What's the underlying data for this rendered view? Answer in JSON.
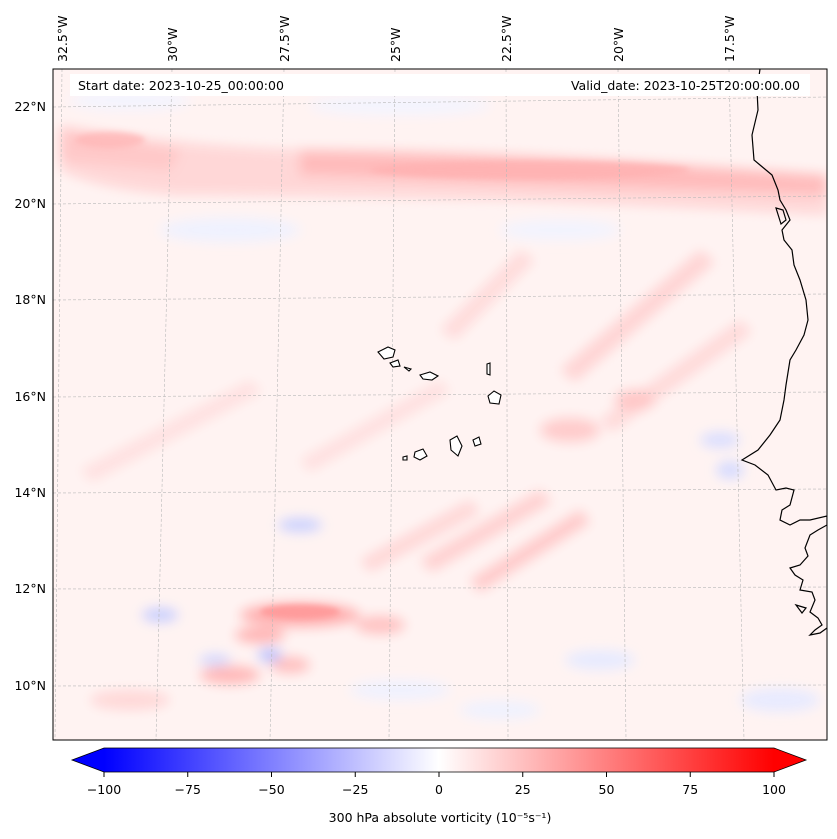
{
  "map": {
    "start_date": "Start date: 2023-10-25_00:00:00",
    "valid_date": "Valid_date: 2023-10-25T20:00:00.00",
    "longitude_labels": [
      "32.5°W",
      "30°W",
      "27.5°W",
      "25°W",
      "22.5°W",
      "20°W",
      "17.5°W"
    ],
    "latitude_labels": [
      "22°N",
      "20°N",
      "18°N",
      "16°N",
      "14°N",
      "12°N",
      "10°N"
    ],
    "features": [
      "Cape Verde islands",
      "West African coastline"
    ]
  },
  "colorbar": {
    "label": "300 hPa absolute vorticity (10⁻⁵s⁻¹)",
    "ticks": [
      "−100",
      "−75",
      "−50",
      "−25",
      "0",
      "25",
      "50",
      "75",
      "100"
    ],
    "min": -100,
    "max": 100,
    "low_color": "#0000ff",
    "mid_color": "#ffffff",
    "high_color": "#ff0000"
  }
}
